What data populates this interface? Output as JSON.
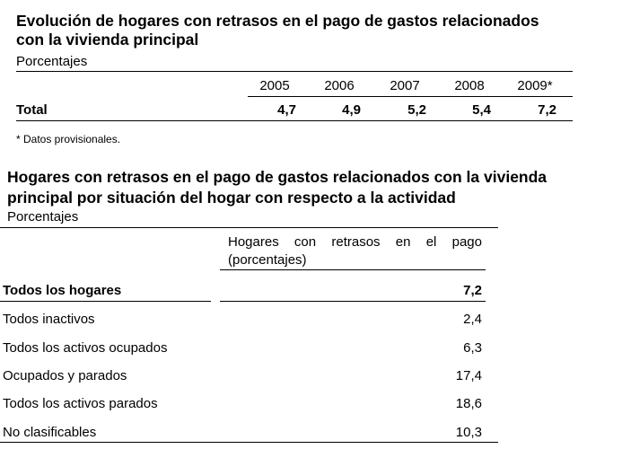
{
  "table1": {
    "title_lines": [
      "Evolución de hogares con retrasos en el pago de gastos relacionados",
      "con la vivienda principal"
    ],
    "subtitle": "Porcentajes",
    "columns": [
      "2005",
      "2006",
      "2007",
      "2008",
      "2009*"
    ],
    "row_label": "Total",
    "values": [
      "4,7",
      "4,9",
      "5,2",
      "5,4",
      "7,2"
    ],
    "footnote": "* Datos provisionales."
  },
  "table2": {
    "title_lines": [
      "Hogares con retrasos en el pago de gastos relacionados con la vivienda",
      "principal por situación del hogar con respecto a la actividad"
    ],
    "subtitle": "Porcentajes",
    "column_header_lines": [
      "Hogares con retrasos en el pago",
      "(porcentajes)"
    ],
    "rows": [
      [
        "Todos los hogares",
        "7,2"
      ],
      [
        "Todos inactivos",
        "2,4"
      ],
      [
        "Todos los activos ocupados",
        "6,3"
      ],
      [
        "Ocupados y parados",
        "17,4"
      ],
      [
        "Todos los activos parados",
        "18,6"
      ],
      [
        "No clasificables",
        "10,3"
      ]
    ]
  }
}
